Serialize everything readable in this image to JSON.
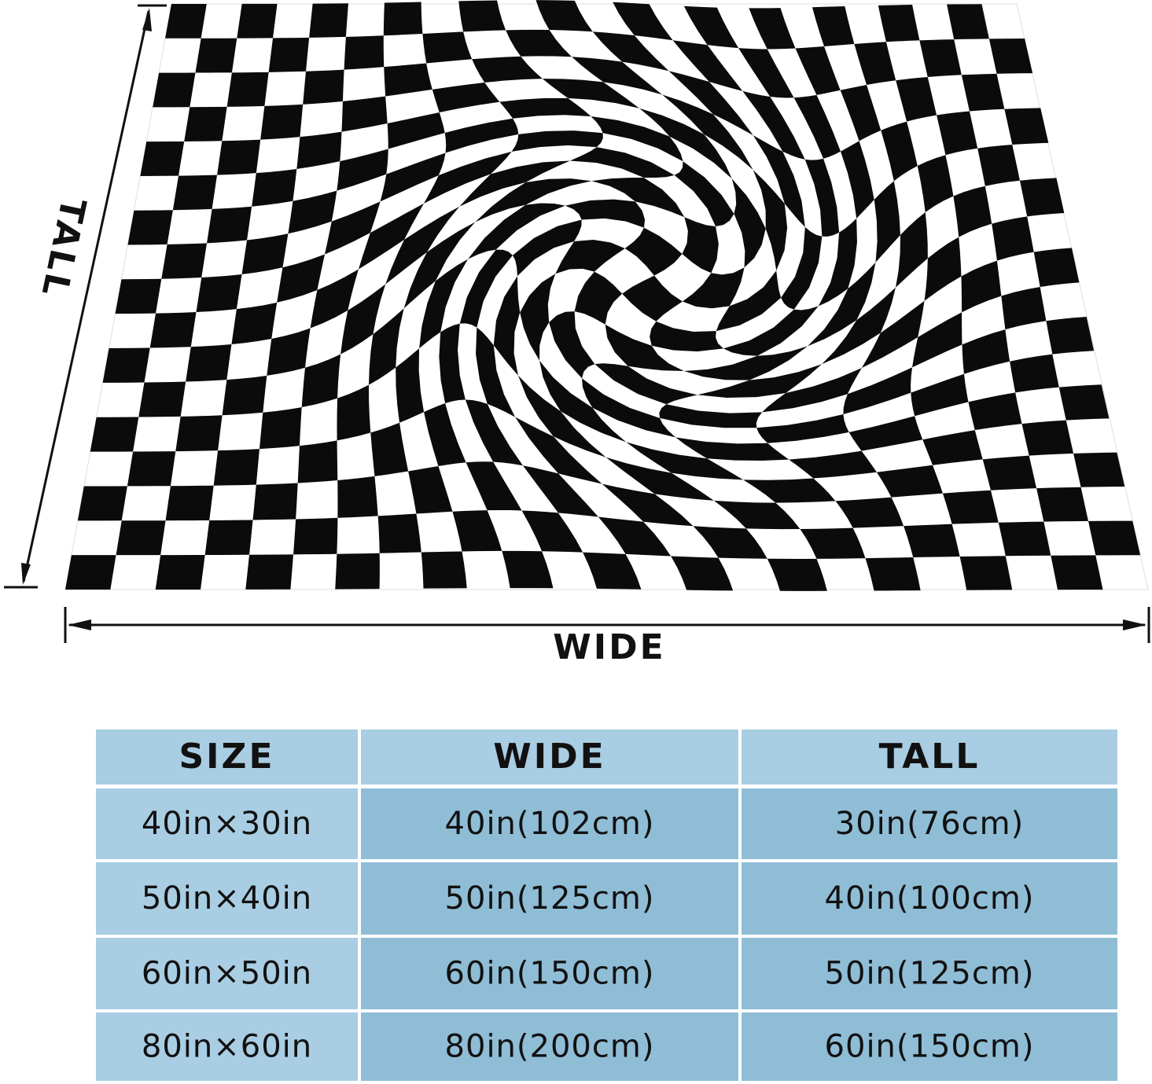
{
  "diagram": {
    "tall_label": "TALL",
    "wide_label": "WIDE"
  },
  "table": {
    "header": [
      "SIZE",
      "WIDE",
      "TALL"
    ],
    "rows": [
      [
        "40in×30in",
        "40in(102cm)",
        "30in(76cm)"
      ],
      [
        "50in×40in",
        "50in(125cm)",
        "40in(100cm)"
      ],
      [
        "60in×50in",
        "60in(150cm)",
        "50in(125cm)"
      ],
      [
        "80in×60in",
        "80in(200cm)",
        "60in(150cm)"
      ]
    ]
  }
}
